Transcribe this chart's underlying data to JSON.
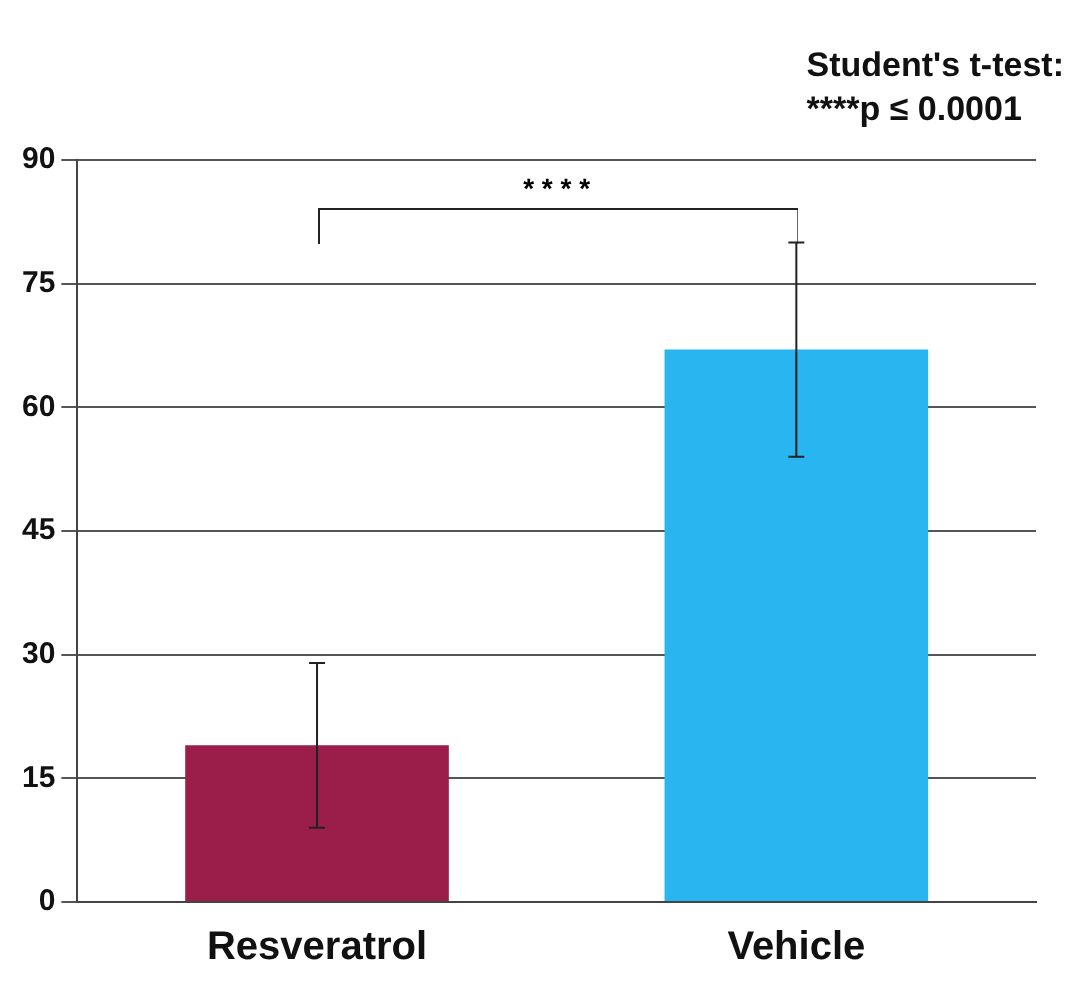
{
  "chart_data": {
    "type": "bar",
    "categories": [
      "Resveratrol",
      "Vehicle"
    ],
    "values": [
      19,
      67
    ],
    "colors": [
      "#9b1d4a",
      "#29b6f0"
    ],
    "errors": [
      10,
      13
    ],
    "ylim": [
      0,
      90
    ],
    "yticks": [
      0,
      15,
      30,
      45,
      60,
      75,
      90
    ],
    "grid": "y",
    "annotations": [
      "* * * *",
      "Student's t-test:",
      "****p ≤ 0.0001"
    ]
  }
}
